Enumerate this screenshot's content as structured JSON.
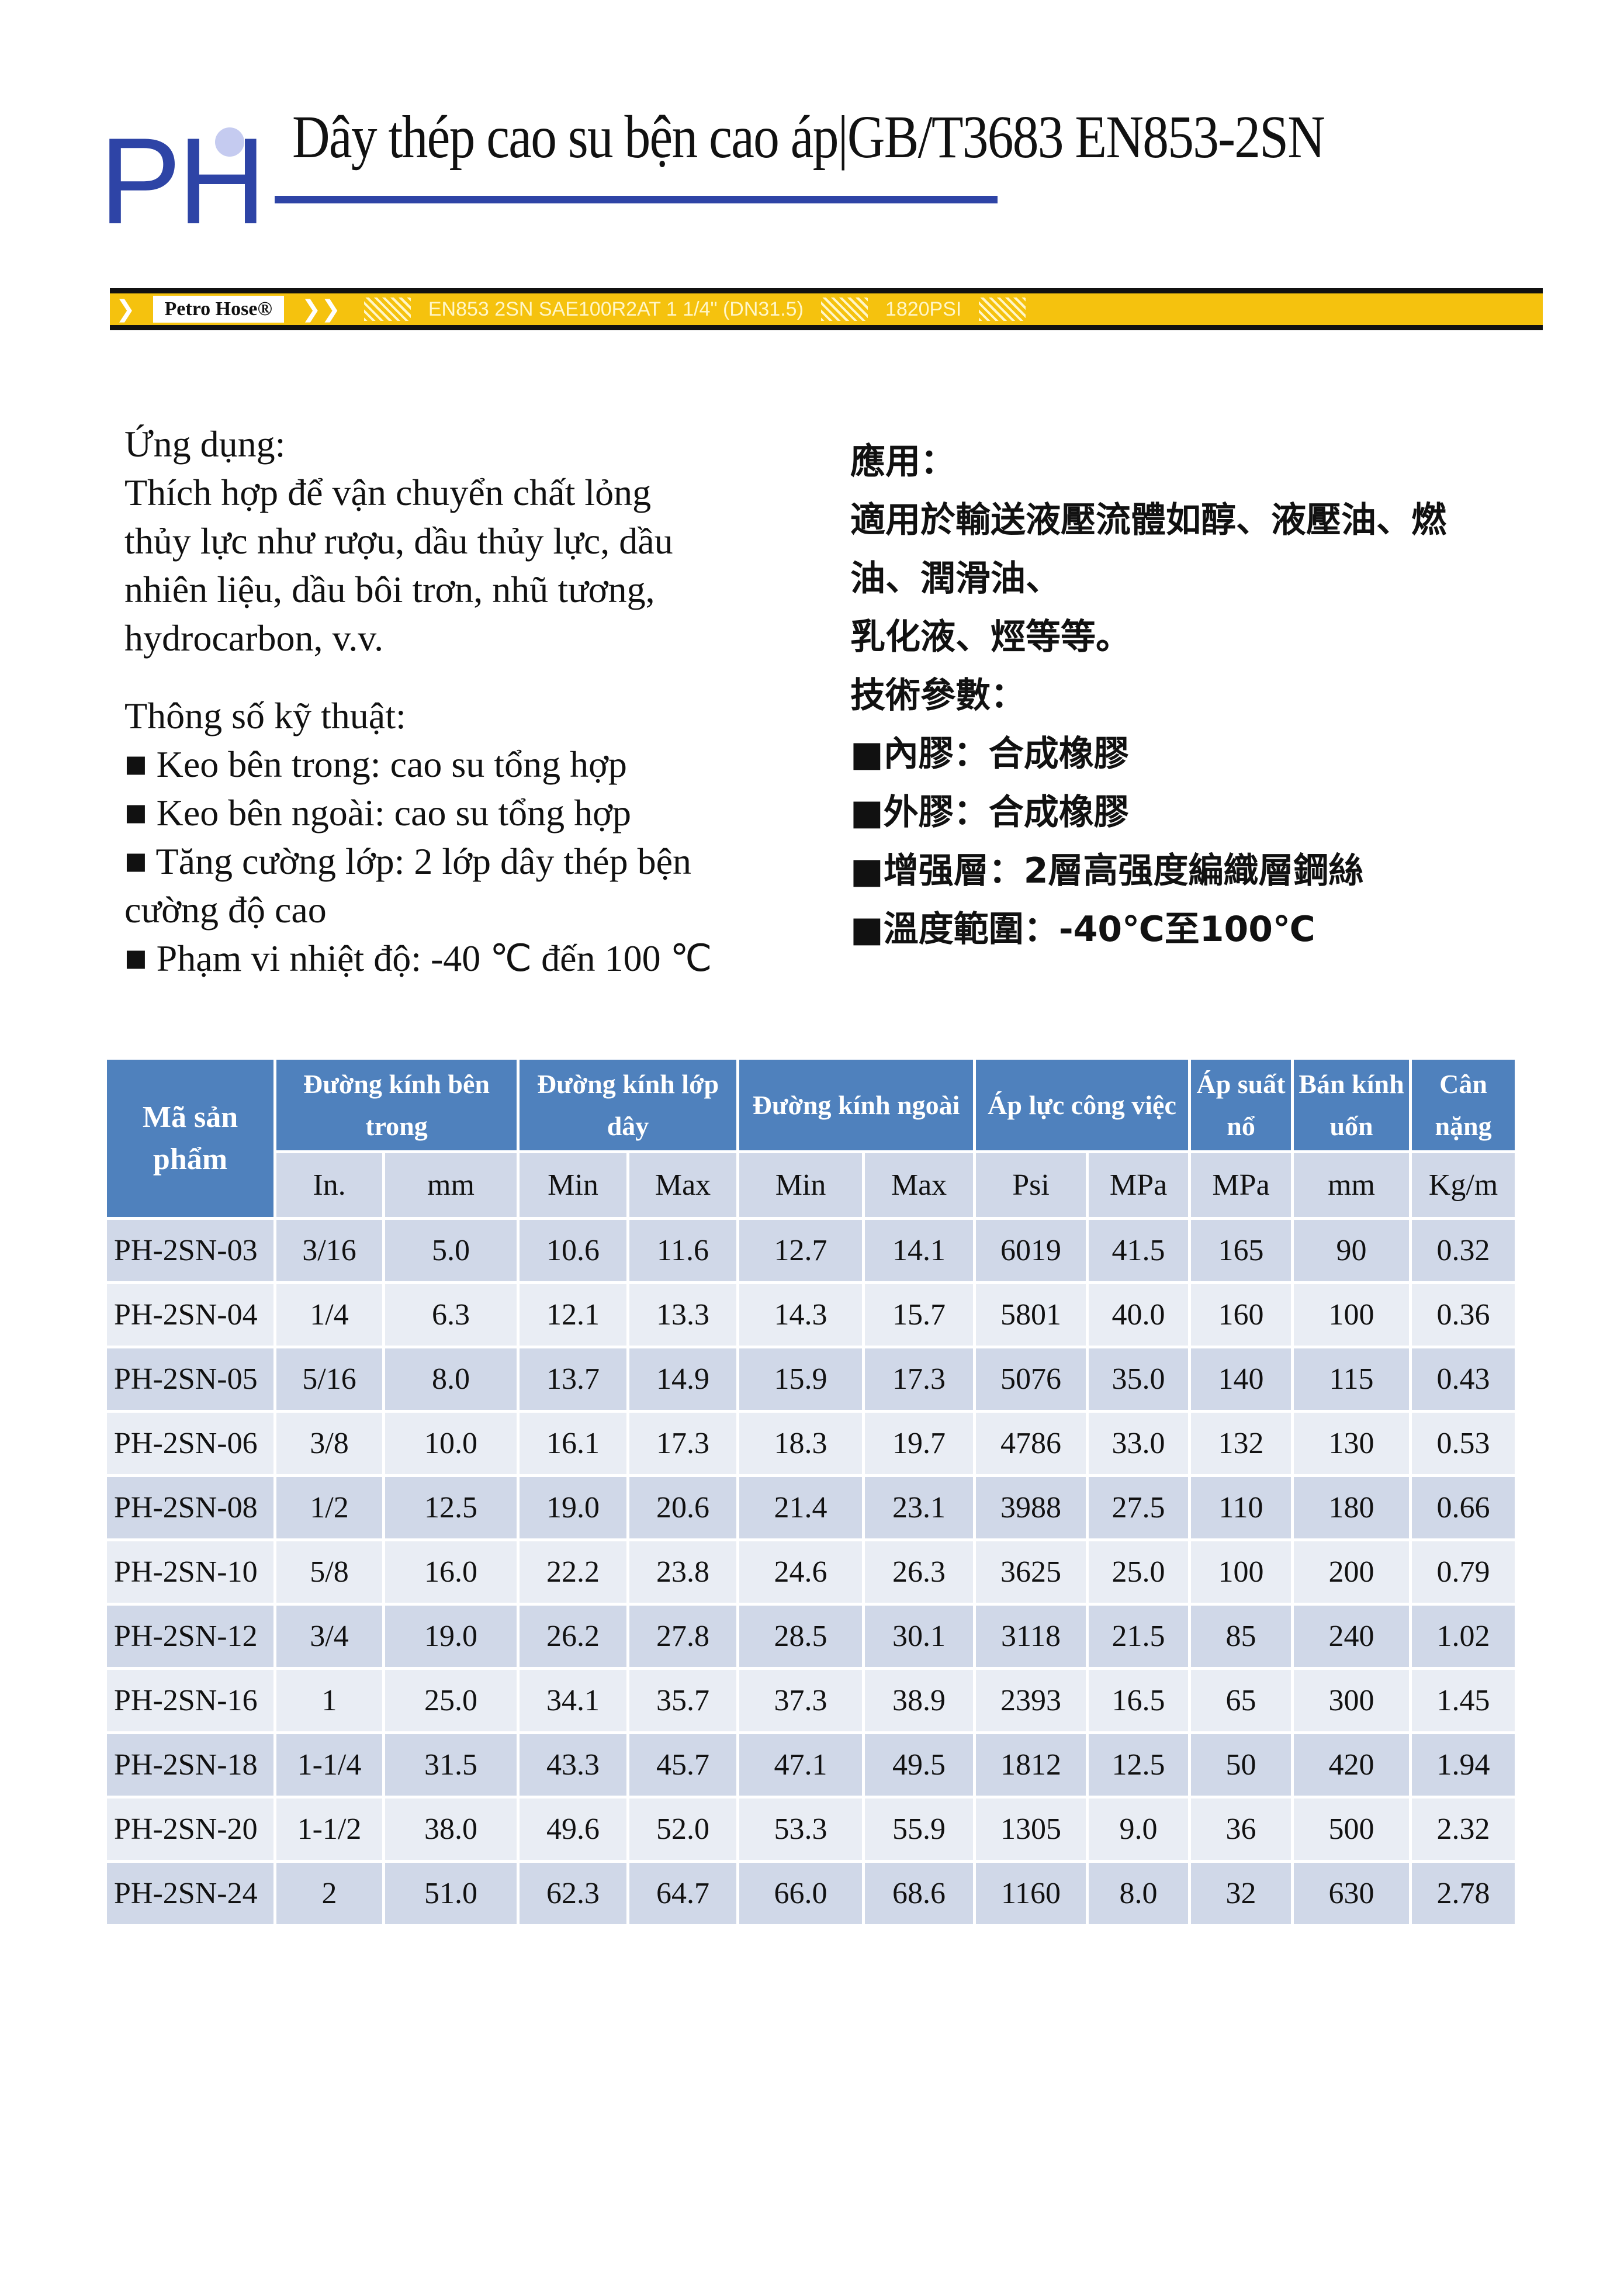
{
  "logo": {
    "text": "PH"
  },
  "title": "Dây thép cao su bện cao áp|GB/T3683 EN853-2SN",
  "hose": {
    "brand": "Petro Hose®",
    "print": "EN853 2SN SAE100R2AT 1 1/4\" (DN31.5)",
    "psi": "1820PSI"
  },
  "left": {
    "app_heading": "Ứng dụng:",
    "app_lines": [
      "Thích hợp để vận chuyển chất lỏng",
      "thủy lực như rượu, dầu thủy lực, dầu",
      "nhiên liệu, dầu bôi trơn, nhũ tương,",
      "hydrocarbon, v.v."
    ],
    "spec_heading": "Thông số kỹ thuật:",
    "spec_lines": [
      "■ Keo bên trong: cao su tổng hợp",
      "■ Keo bên ngoài: cao su tổng hợp",
      "■ Tăng cường lớp: 2 lớp dây thép bện",
      "cường độ cao",
      "■ Phạm vi nhiệt độ: -40 ℃ đến 100 ℃"
    ]
  },
  "right": {
    "lines": [
      "應用：",
      "適用於輸送液壓流體如醇、液壓油、燃",
      "油、潤滑油、",
      "乳化液、烴等等。",
      "技術參數：",
      "■內膠：合成橡膠",
      "■外膠：合成橡膠",
      "■增强層：2層高强度編織層鋼絲",
      "■溫度範圍：-40℃至100℃"
    ]
  },
  "table": {
    "group_headers": [
      "Mã sản phẩm",
      "Đường kính bên trong",
      "Đường kính lớp dây",
      "Đường kính ngoài",
      "Áp lực công việc",
      "Áp suất nổ",
      "Bán kính uốn",
      "Cân nặng"
    ],
    "sub_headers": [
      "In.",
      "mm",
      "Min",
      "Max",
      "Min",
      "Max",
      "Psi",
      "MPa",
      "MPa",
      "mm",
      "Kg/m"
    ],
    "rows": [
      [
        "PH-2SN-03",
        "3/16",
        "5.0",
        "10.6",
        "11.6",
        "12.7",
        "14.1",
        "6019",
        "41.5",
        "165",
        "90",
        "0.32"
      ],
      [
        "PH-2SN-04",
        "1/4",
        "6.3",
        "12.1",
        "13.3",
        "14.3",
        "15.7",
        "5801",
        "40.0",
        "160",
        "100",
        "0.36"
      ],
      [
        "PH-2SN-05",
        "5/16",
        "8.0",
        "13.7",
        "14.9",
        "15.9",
        "17.3",
        "5076",
        "35.0",
        "140",
        "115",
        "0.43"
      ],
      [
        "PH-2SN-06",
        "3/8",
        "10.0",
        "16.1",
        "17.3",
        "18.3",
        "19.7",
        "4786",
        "33.0",
        "132",
        "130",
        "0.53"
      ],
      [
        "PH-2SN-08",
        "1/2",
        "12.5",
        "19.0",
        "20.6",
        "21.4",
        "23.1",
        "3988",
        "27.5",
        "110",
        "180",
        "0.66"
      ],
      [
        "PH-2SN-10",
        "5/8",
        "16.0",
        "22.2",
        "23.8",
        "24.6",
        "26.3",
        "3625",
        "25.0",
        "100",
        "200",
        "0.79"
      ],
      [
        "PH-2SN-12",
        "3/4",
        "19.0",
        "26.2",
        "27.8",
        "28.5",
        "30.1",
        "3118",
        "21.5",
        "85",
        "240",
        "1.02"
      ],
      [
        "PH-2SN-16",
        "1",
        "25.0",
        "34.1",
        "35.7",
        "37.3",
        "38.9",
        "2393",
        "16.5",
        "65",
        "300",
        "1.45"
      ],
      [
        "PH-2SN-18",
        "1-1/4",
        "31.5",
        "43.3",
        "45.7",
        "47.1",
        "49.5",
        "1812",
        "12.5",
        "50",
        "420",
        "1.94"
      ],
      [
        "PH-2SN-20",
        "1-1/2",
        "38.0",
        "49.6",
        "52.0",
        "53.3",
        "55.9",
        "1305",
        "9.0",
        "36",
        "500",
        "2.32"
      ],
      [
        "PH-2SN-24",
        "2",
        "51.0",
        "62.3",
        "64.7",
        "66.0",
        "68.6",
        "1160",
        "8.0",
        "32",
        "630",
        "2.78"
      ]
    ]
  },
  "colors": {
    "brand": "#2e44a6",
    "header": "#4f81bd",
    "row_dark": "#d0d8e8",
    "row_light": "#e9edf4",
    "hose": "#f5c20e"
  }
}
